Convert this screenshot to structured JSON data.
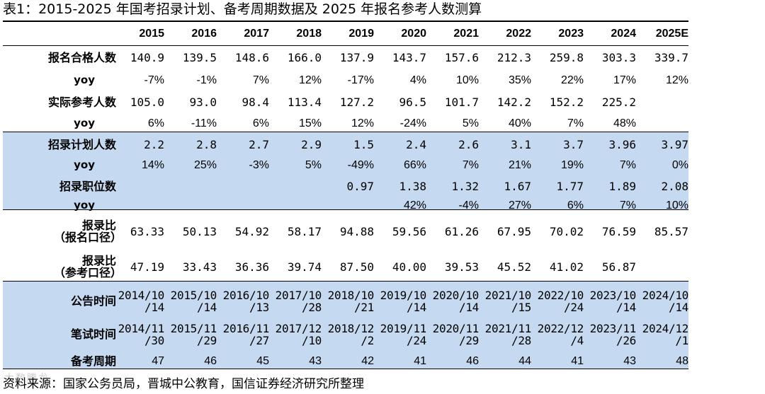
{
  "title": "表1：2015-2025 年国考招录计划、备考周期数据及 2025 年报名参考人数测算",
  "source": "资料来源：国家公务员局，晋城中公教育，国信证券经济研究所整理",
  "watermark": "大数腾龙",
  "colors": {
    "band": "#c5d9f1",
    "rule": "#000000"
  },
  "years": [
    "2015",
    "2016",
    "2017",
    "2018",
    "2019",
    "2020",
    "2021",
    "2022",
    "2023",
    "2024",
    "2025E"
  ],
  "rows": {
    "apply_qualified": {
      "label": "报名合格人数",
      "values": [
        "140.9",
        "139.5",
        "148.6",
        "166.0",
        "137.9",
        "143.7",
        "157.6",
        "212.3",
        "259.8",
        "303.3",
        "339.7"
      ],
      "yoy_label": "yoy",
      "yoy": [
        "-7%",
        "-1%",
        "7%",
        "12%",
        "-17%",
        "4%",
        "10%",
        "35%",
        "22%",
        "17%",
        "12%"
      ]
    },
    "actual_exam": {
      "label": "实际参考人数",
      "values": [
        "105.0",
        "93.0",
        "98.4",
        "113.4",
        "127.2",
        "96.5",
        "101.7",
        "142.2",
        "152.2",
        "225.2",
        ""
      ],
      "yoy_label": "yoy",
      "yoy": [
        "6%",
        "-11%",
        "6%",
        "15%",
        "12%",
        "-24%",
        "5%",
        "40%",
        "7%",
        "48%",
        ""
      ]
    },
    "recruit_plan": {
      "label": "招录计划人数",
      "values": [
        "2.2",
        "2.8",
        "2.7",
        "2.9",
        "1.5",
        "2.4",
        "2.6",
        "3.1",
        "3.7",
        "3.96",
        "3.97"
      ],
      "yoy_label": "yoy",
      "yoy": [
        "14%",
        "25%",
        "-3%",
        "5%",
        "-49%",
        "66%",
        "7%",
        "21%",
        "19%",
        "7%",
        "0%"
      ]
    },
    "positions": {
      "label": "招录职位数",
      "values": [
        "",
        "",
        "",
        "",
        "0.97",
        "1.38",
        "1.32",
        "1.67",
        "1.77",
        "1.89",
        "2.08"
      ],
      "yoy_label": "yoy",
      "yoy": [
        "",
        "",
        "",
        "",
        "",
        "42%",
        "-4%",
        "27%",
        "6%",
        "7%",
        "10%"
      ]
    },
    "ratio_apply": {
      "label_line1": "报录比",
      "label_line2": "（报名口径）",
      "values": [
        "63.33",
        "50.13",
        "54.92",
        "58.17",
        "94.88",
        "59.56",
        "61.26",
        "67.95",
        "70.02",
        "76.59",
        "85.57"
      ]
    },
    "ratio_exam": {
      "label_line1": "报录比",
      "label_line2": "（参考口径）",
      "values": [
        "47.19",
        "33.43",
        "36.36",
        "39.74",
        "87.50",
        "40.00",
        "39.53",
        "45.52",
        "41.02",
        "56.87",
        ""
      ]
    },
    "announce": {
      "label": "公告时间",
      "line1": [
        "2014/10",
        "2015/10",
        "2016/10",
        "2017/10",
        "2018/10",
        "2019/10",
        "2020/10",
        "2021/10",
        "2022/10",
        "2023/10",
        "2024/10"
      ],
      "line2": [
        "/14",
        "/14",
        "/13",
        "/28",
        "/21",
        "/14",
        "/14",
        "/15",
        "/24",
        "/14",
        "/14"
      ]
    },
    "written": {
      "label": "笔试时间",
      "line1": [
        "2014/11",
        "2015/11",
        "2016/11",
        "2017/12",
        "2018/12",
        "2019/11",
        "2020/11",
        "2021/11",
        "2022/12",
        "2023/11",
        "2024/12"
      ],
      "line2": [
        "/30",
        "/29",
        "/27",
        "/10",
        "/2",
        "/24",
        "/29",
        "/28",
        "/4",
        "/26",
        "/1"
      ]
    },
    "prep_cycle": {
      "label": "备考周期",
      "values": [
        "47",
        "46",
        "45",
        "43",
        "42",
        "41",
        "46",
        "44",
        "41",
        "43",
        "48"
      ]
    }
  }
}
